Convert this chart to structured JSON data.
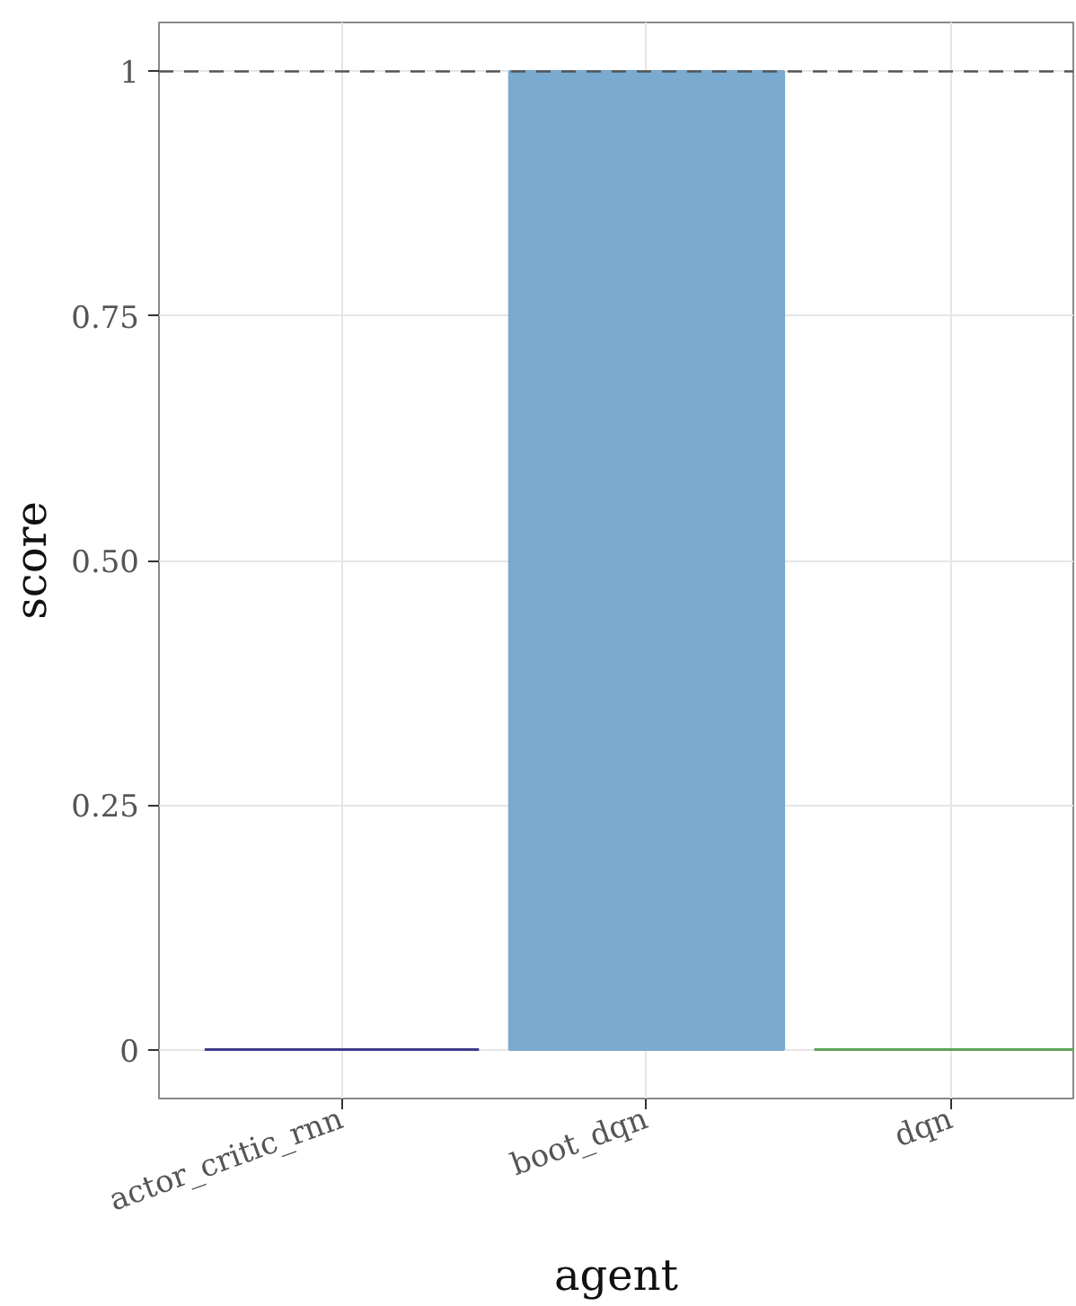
{
  "chart_data": {
    "type": "bar",
    "xlabel": "agent",
    "ylabel": "score",
    "categories": [
      "actor_critic_rnn",
      "boot_dqn",
      "dqn"
    ],
    "values": [
      0,
      1,
      0
    ],
    "colors": [
      "#3d3f8a",
      "#7aaacf",
      "#5ea35a"
    ],
    "ylim": [
      -0.05,
      1.05
    ],
    "yticks": [
      {
        "value": 0,
        "label": "0"
      },
      {
        "value": 0.25,
        "label": "0.25"
      },
      {
        "value": 0.5,
        "label": "0.50"
      },
      {
        "value": 0.75,
        "label": "0.75"
      },
      {
        "value": 1,
        "label": "1"
      }
    ],
    "ref_lines": [
      {
        "axis": "y",
        "value": 1,
        "label": null,
        "color": "#555555",
        "line_style": "dashed"
      }
    ],
    "grid": true
  }
}
